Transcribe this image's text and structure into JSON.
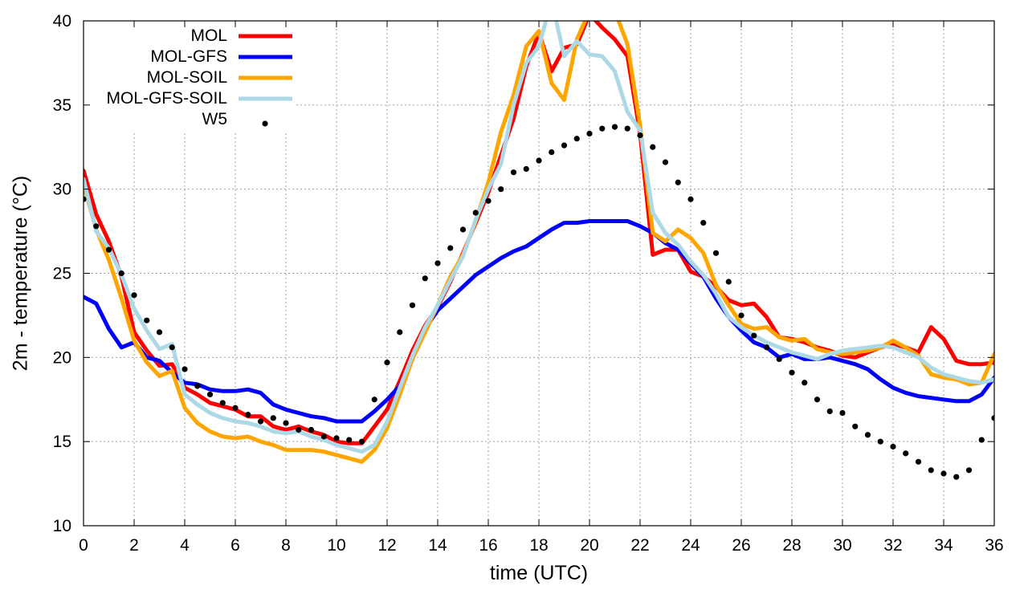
{
  "chart_data": {
    "type": "line",
    "title": "",
    "xlabel": "time (UTC)",
    "ylabel": "2m - temperature (°C)",
    "xlim": [
      0,
      36
    ],
    "ylim": [
      10,
      40
    ],
    "xticks": [
      0,
      2,
      4,
      6,
      8,
      10,
      12,
      14,
      16,
      18,
      20,
      22,
      24,
      26,
      28,
      30,
      32,
      34,
      36
    ],
    "yticks": [
      10,
      15,
      20,
      25,
      30,
      35,
      40
    ],
    "grid": true,
    "legend_position": "top-left",
    "series": [
      {
        "name": "MOL",
        "style": "line",
        "color": "#ff0000",
        "x": [
          0,
          0.5,
          1,
          1.5,
          2,
          2.5,
          3,
          3.5,
          4,
          4.5,
          5,
          5.5,
          6,
          6.5,
          7,
          7.5,
          8,
          8.5,
          9,
          9.5,
          10,
          10.5,
          11,
          11.5,
          12,
          12.5,
          13,
          13.5,
          14,
          14.5,
          15,
          15.5,
          16,
          16.5,
          17,
          17.5,
          18,
          18.5,
          19,
          19.5,
          20,
          20.5,
          21,
          21.5,
          22,
          22.5,
          23,
          23.5,
          24,
          24.5,
          25,
          25.5,
          26,
          26.5,
          27,
          27.5,
          28,
          28.5,
          29,
          29.5,
          30,
          30.5,
          31,
          31.5,
          32,
          32.5,
          33,
          33.5,
          34,
          34.5,
          35,
          35.5,
          36
        ],
        "values": [
          31.1,
          28.5,
          26.9,
          24.8,
          21.5,
          20.4,
          19.5,
          19.6,
          18.2,
          17.8,
          17.3,
          17.1,
          16.9,
          16.5,
          16.5,
          15.9,
          15.7,
          15.9,
          15.6,
          15.4,
          15.0,
          14.9,
          14.9,
          15.9,
          16.9,
          18.6,
          20.4,
          21.9,
          23.0,
          24.5,
          26.2,
          28.0,
          29.8,
          32.0,
          34.2,
          37.3,
          39.3,
          37.0,
          38.4,
          38.6,
          40.4,
          39.6,
          38.9,
          37.9,
          33.3,
          26.1,
          26.4,
          26.4,
          25.1,
          24.8,
          24.2,
          23.4,
          23.1,
          23.2,
          22.4,
          21.2,
          21.1,
          20.9,
          20.6,
          20.4,
          20.1,
          20.0,
          20.3,
          20.6,
          20.8,
          20.6,
          20.3,
          21.8,
          21.1,
          19.8,
          19.6,
          19.6,
          19.7
        ]
      },
      {
        "name": "MOL-GFS",
        "style": "line",
        "color": "#0000ff",
        "x": [
          0,
          0.5,
          1,
          1.5,
          2,
          2.5,
          3,
          3.5,
          4,
          4.5,
          5,
          5.5,
          6,
          6.5,
          7,
          7.5,
          8,
          8.5,
          9,
          9.5,
          10,
          10.5,
          11,
          11.5,
          12,
          12.5,
          13,
          13.5,
          14,
          14.5,
          15,
          15.5,
          16,
          16.5,
          17,
          17.5,
          18,
          18.5,
          19,
          19.5,
          20,
          20.5,
          21,
          21.5,
          22,
          22.5,
          23,
          23.5,
          24,
          24.5,
          25,
          25.5,
          26,
          26.5,
          27,
          27.5,
          28,
          28.5,
          29,
          29.5,
          30,
          30.5,
          31,
          31.5,
          32,
          32.5,
          33,
          33.5,
          34,
          34.5,
          35,
          35.5,
          36
        ],
        "values": [
          23.6,
          23.2,
          21.7,
          20.6,
          20.9,
          20.0,
          19.8,
          19.1,
          18.5,
          18.4,
          18.1,
          18.0,
          18.0,
          18.1,
          17.9,
          17.2,
          16.9,
          16.7,
          16.5,
          16.4,
          16.2,
          16.2,
          16.2,
          16.8,
          17.5,
          18.3,
          19.9,
          21.7,
          22.8,
          23.5,
          24.2,
          24.9,
          25.4,
          25.9,
          26.3,
          26.6,
          27.1,
          27.6,
          28.0,
          28.0,
          28.1,
          28.1,
          28.1,
          28.1,
          27.8,
          27.4,
          26.8,
          26.4,
          25.6,
          24.8,
          23.5,
          22.4,
          21.6,
          20.9,
          20.6,
          20.0,
          20.2,
          19.9,
          19.9,
          20.0,
          19.8,
          19.6,
          19.3,
          18.7,
          18.2,
          17.9,
          17.7,
          17.6,
          17.5,
          17.4,
          17.4,
          17.8,
          18.8
        ]
      },
      {
        "name": "MOL-SOIL",
        "style": "line",
        "color": "#ffa500",
        "x": [
          0,
          0.5,
          1,
          1.5,
          2,
          2.5,
          3,
          3.5,
          4,
          4.5,
          5,
          5.5,
          6,
          6.5,
          7,
          7.5,
          8,
          8.5,
          9,
          9.5,
          10,
          10.5,
          11,
          11.5,
          12,
          12.5,
          13,
          13.5,
          14,
          14.5,
          15,
          15.5,
          16,
          16.5,
          17,
          17.5,
          18,
          18.5,
          19,
          19.5,
          20,
          20.5,
          21,
          21.5,
          22,
          22.5,
          23,
          23.5,
          24,
          24.5,
          25,
          25.5,
          26,
          26.5,
          27,
          27.5,
          28,
          28.5,
          29,
          29.5,
          30,
          30.5,
          31,
          31.5,
          32,
          32.5,
          33,
          33.5,
          34,
          34.5,
          35,
          35.5,
          36
        ],
        "values": [
          30.3,
          27.6,
          25.8,
          23.5,
          21.0,
          19.7,
          18.9,
          19.2,
          17.0,
          16.1,
          15.6,
          15.3,
          15.2,
          15.3,
          15.0,
          14.8,
          14.5,
          14.5,
          14.5,
          14.4,
          14.2,
          14.0,
          13.8,
          14.5,
          15.8,
          17.8,
          19.9,
          21.5,
          23.1,
          24.8,
          26.1,
          28.1,
          30.4,
          33.4,
          35.6,
          38.5,
          39.4,
          36.3,
          35.3,
          38.9,
          40.6,
          40.7,
          40.6,
          38.6,
          33.8,
          27.4,
          26.9,
          27.6,
          27.1,
          26.2,
          24.3,
          23.1,
          22.0,
          21.7,
          21.8,
          21.2,
          21.0,
          21.1,
          20.5,
          20.3,
          20.2,
          20.3,
          20.4,
          20.6,
          21.0,
          20.6,
          20.1,
          19.0,
          18.8,
          18.7,
          18.4,
          18.5,
          20.2
        ]
      },
      {
        "name": "MOL-GFS-SOIL",
        "style": "line",
        "color": "#add8e6",
        "x": [
          0,
          0.5,
          1,
          1.5,
          2,
          2.5,
          3,
          3.5,
          4,
          4.5,
          5,
          5.5,
          6,
          6.5,
          7,
          7.5,
          8,
          8.5,
          9,
          9.5,
          10,
          10.5,
          11,
          11.5,
          12,
          12.5,
          13,
          13.5,
          14,
          14.5,
          15,
          15.5,
          16,
          16.5,
          17,
          17.5,
          18,
          18.5,
          19,
          19.5,
          20,
          20.5,
          21,
          21.5,
          22,
          22.5,
          23,
          23.5,
          24,
          24.5,
          25,
          25.5,
          26,
          26.5,
          27,
          27.5,
          28,
          28.5,
          29,
          29.5,
          30,
          30.5,
          31,
          31.5,
          32,
          32.5,
          33,
          33.5,
          34,
          34.5,
          35,
          35.5,
          36
        ],
        "values": [
          30.6,
          27.5,
          26.5,
          24.9,
          22.9,
          21.6,
          20.5,
          20.8,
          17.8,
          17.2,
          16.7,
          16.4,
          16.2,
          16.1,
          15.9,
          15.6,
          15.5,
          15.6,
          15.3,
          15.1,
          14.8,
          14.6,
          14.4,
          14.8,
          16.2,
          18.2,
          20.1,
          21.8,
          23.1,
          24.6,
          26.0,
          28.2,
          30.0,
          31.5,
          35.0,
          37.5,
          38.5,
          41.2,
          37.9,
          38.8,
          38.0,
          37.9,
          37.0,
          34.6,
          33.5,
          28.6,
          27.4,
          26.7,
          25.7,
          24.9,
          23.8,
          22.4,
          21.8,
          21.3,
          20.9,
          20.6,
          20.3,
          20.1,
          19.9,
          20.2,
          20.4,
          20.5,
          20.6,
          20.7,
          20.6,
          20.3,
          20.0,
          19.4,
          19.0,
          18.8,
          18.6,
          18.5,
          18.7
        ]
      },
      {
        "name": "W5",
        "style": "points",
        "color": "#000000",
        "x": [
          0,
          0.5,
          1,
          1.5,
          2,
          2.5,
          3,
          3.5,
          4,
          4.5,
          5,
          5.5,
          6,
          6.5,
          7,
          7.5,
          8,
          8.5,
          9,
          9.5,
          10,
          10.5,
          11,
          11.5,
          12,
          12.5,
          13,
          13.5,
          14,
          14.5,
          15,
          15.5,
          16,
          16.5,
          17,
          17.5,
          18,
          18.5,
          19,
          19.5,
          20,
          20.5,
          21,
          21.5,
          22,
          22.5,
          23,
          23.5,
          24,
          24.5,
          25,
          25.5,
          26,
          26.5,
          27,
          27.5,
          28,
          28.5,
          29,
          29.5,
          30,
          30.5,
          31,
          31.5,
          32,
          32.5,
          33,
          33.5,
          34,
          34.5,
          35,
          35.5,
          36
        ],
        "values": [
          29.4,
          27.8,
          26.4,
          25.0,
          23.7,
          22.2,
          21.5,
          20.6,
          19.3,
          18.3,
          17.8,
          17.3,
          17.0,
          16.6,
          16.2,
          16.4,
          16.1,
          15.7,
          15.7,
          15.3,
          15.2,
          15.1,
          15.0,
          17.5,
          19.7,
          21.5,
          23.1,
          24.7,
          25.6,
          26.5,
          27.6,
          28.6,
          29.3,
          30.0,
          31.0,
          31.2,
          31.7,
          32.2,
          32.6,
          33.0,
          33.3,
          33.6,
          33.7,
          33.6,
          33.2,
          32.5,
          31.6,
          30.4,
          29.4,
          28.0,
          26.2,
          24.5,
          22.5,
          21.3,
          20.6,
          19.9,
          19.1,
          18.5,
          17.5,
          16.8,
          16.7,
          15.9,
          15.4,
          15.0,
          14.7,
          14.3,
          13.8,
          13.3,
          13.1,
          12.9,
          13.3,
          15.1,
          16.4
        ]
      }
    ]
  }
}
